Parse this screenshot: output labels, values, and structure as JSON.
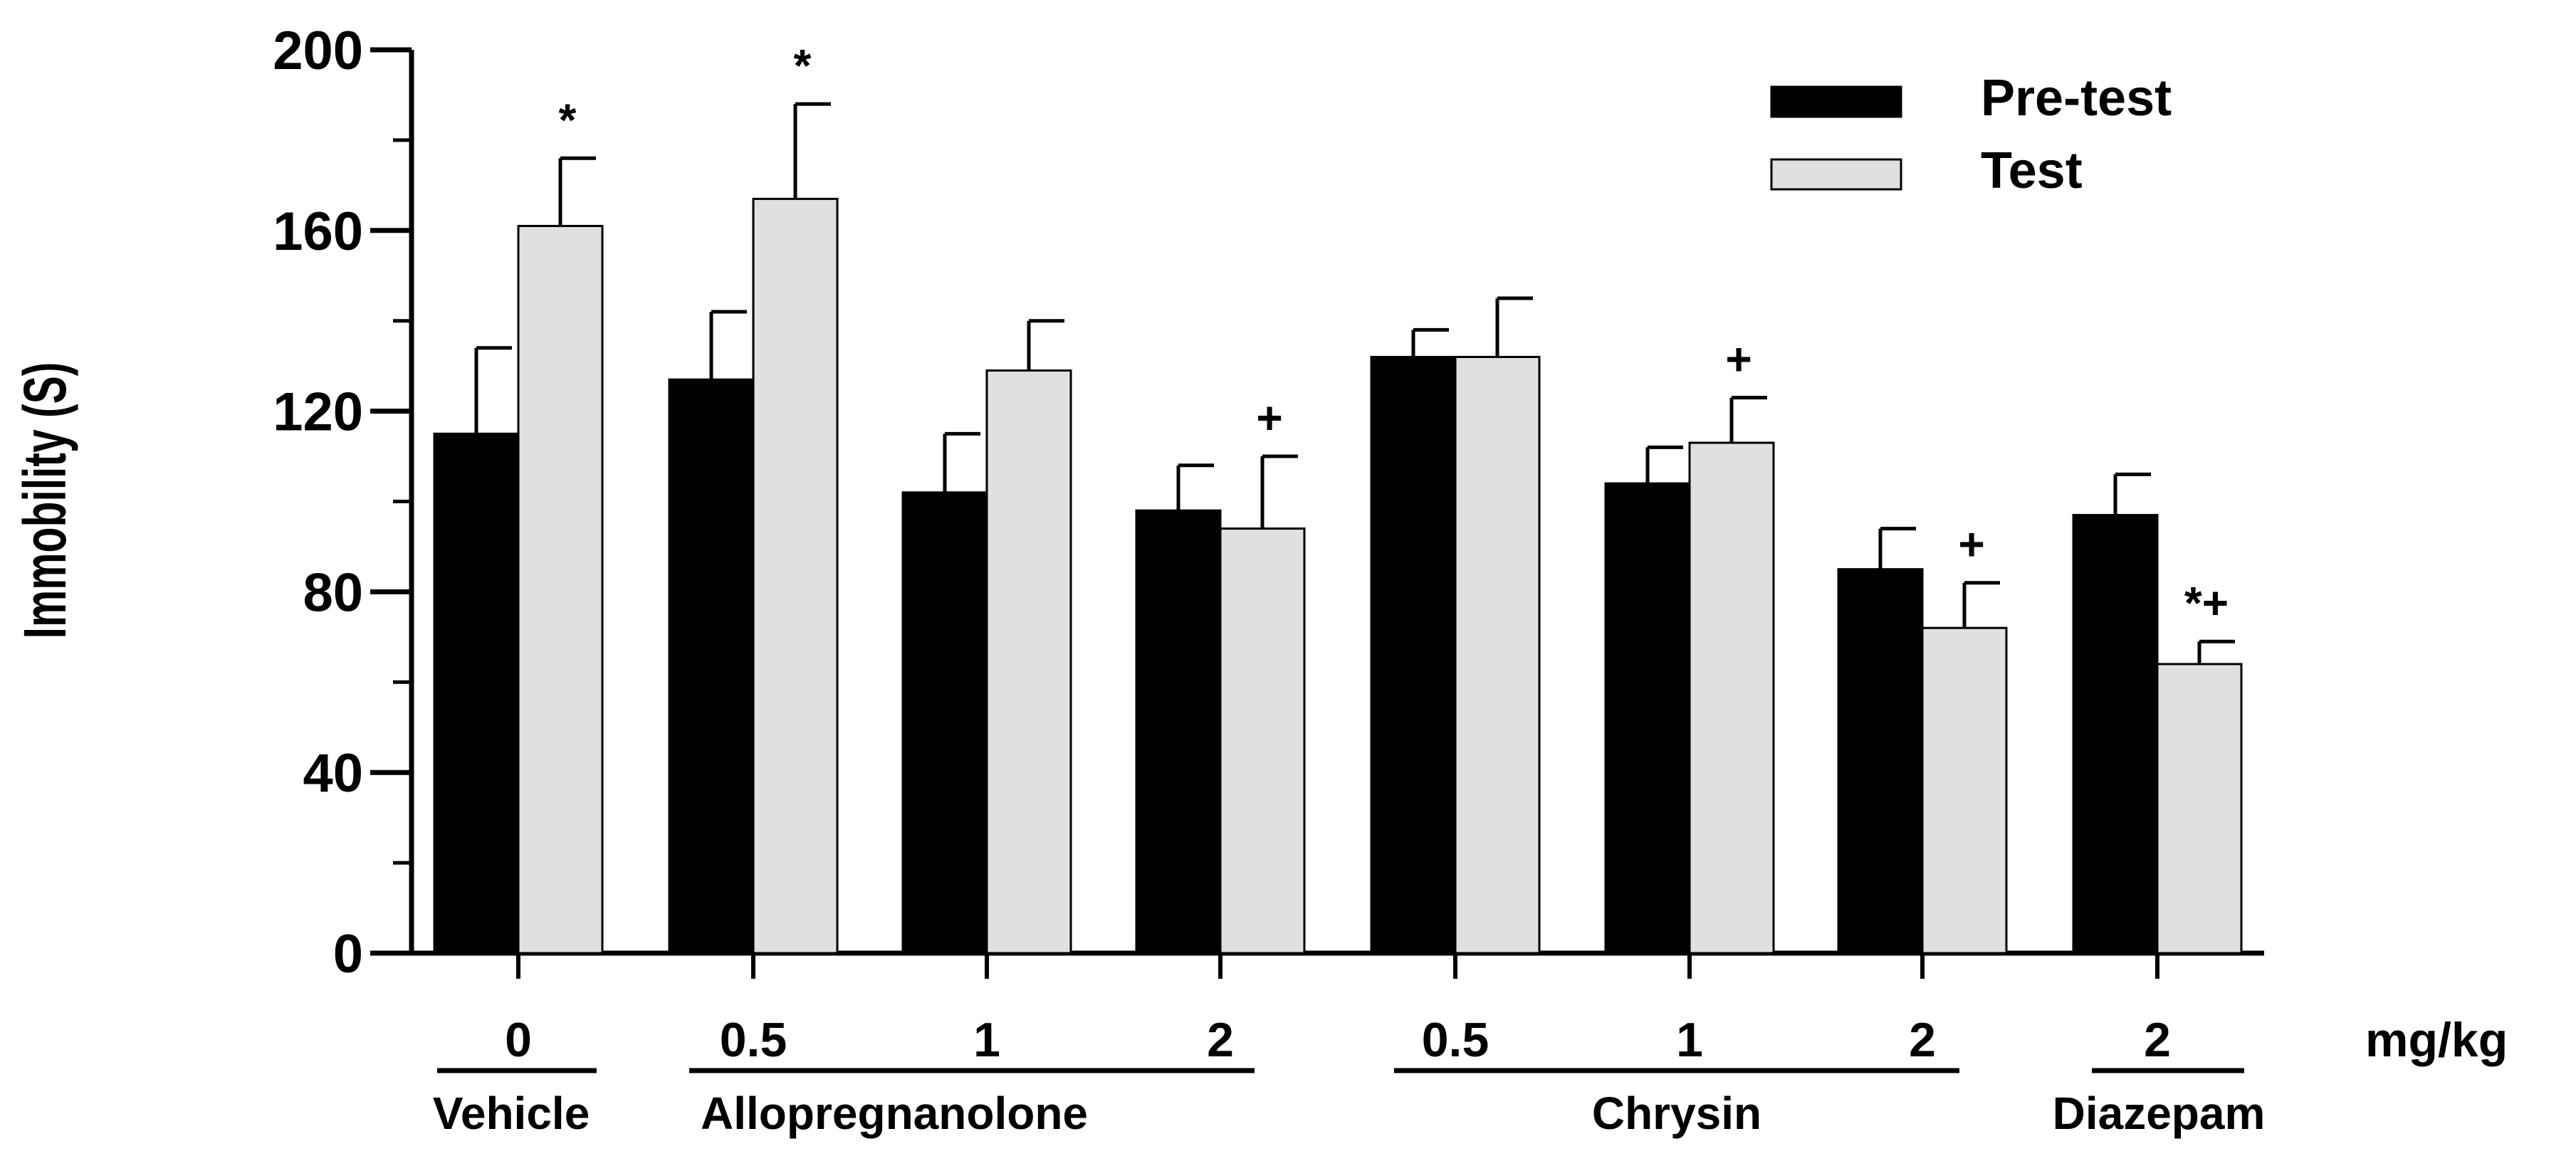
{
  "chart_data": {
    "type": "bar",
    "title": "",
    "ylabel": "Immobility (S)",
    "xlabel": "",
    "ylim": [
      0,
      200
    ],
    "yticks": [
      0,
      40,
      80,
      120,
      160,
      200
    ],
    "unit_label": "mg/kg",
    "categories": [
      "0",
      "0.5",
      "1",
      "2",
      "0.5",
      "1",
      "2",
      "2"
    ],
    "groups": [
      {
        "name": "Vehicle",
        "categories": [
          0
        ]
      },
      {
        "name": "Allopregnanolone",
        "categories": [
          1,
          2,
          3
        ]
      },
      {
        "name": "Chrysin",
        "categories": [
          4,
          5,
          6
        ]
      },
      {
        "name": "Diazepam",
        "categories": [
          7
        ]
      }
    ],
    "series": [
      {
        "name": "Pre-test",
        "color": "#000000",
        "values": [
          115,
          127,
          102,
          98,
          132,
          104,
          85,
          97
        ],
        "errors": [
          19,
          15,
          13,
          10,
          6,
          8,
          9,
          9
        ]
      },
      {
        "name": "Test",
        "color": "#e0e0e0",
        "values": [
          161,
          167,
          129,
          94,
          132,
          113,
          72,
          64
        ],
        "errors": [
          15,
          21,
          11,
          16,
          13,
          10,
          10,
          5
        ]
      }
    ],
    "annotations": [
      "*",
      "*",
      "",
      "+",
      "",
      "+",
      "+",
      "*+"
    ],
    "legend_position": "top-right"
  }
}
